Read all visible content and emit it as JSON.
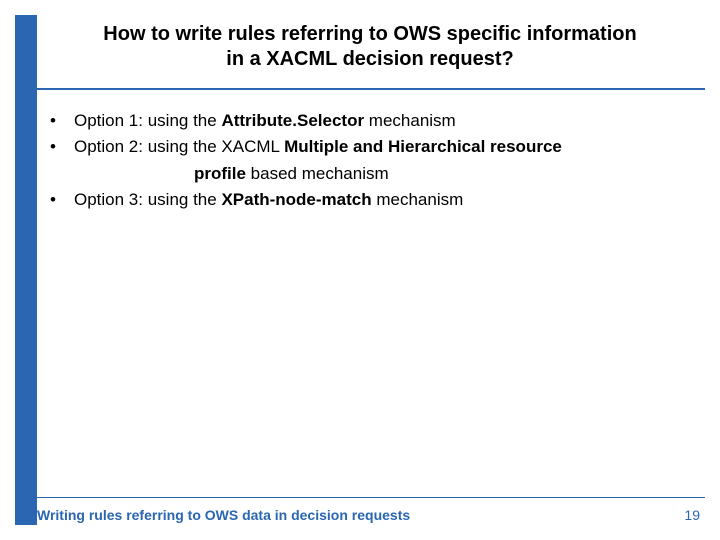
{
  "colors": {
    "accent": "#2a66b1",
    "text": "#000000",
    "background": "#ffffff"
  },
  "typography": {
    "family": "Verdana, Arial, sans-serif",
    "title_size_pt": 20,
    "body_size_pt": 17,
    "footer_size_pt": 14
  },
  "title": {
    "line1": "How to write rules referring to OWS specific information",
    "line2": "in a XACML decision request?"
  },
  "bullets": {
    "items": [
      {
        "lead": "Option 1: using the ",
        "bold": "Attribute.Selector",
        "tail": " mechanism"
      },
      {
        "lead": "Option 2: using the XACML ",
        "bold": "Multiple and Hierarchical resource",
        "tail": "",
        "cont_bold": "profile",
        "cont_tail": " based mechanism"
      },
      {
        "lead": "Option 3: using the ",
        "bold": "XPath-node-match",
        "tail": " mechanism"
      }
    ],
    "marker": "•"
  },
  "footer": {
    "left": "Writing rules referring to OWS data in decision requests",
    "page": "19"
  }
}
